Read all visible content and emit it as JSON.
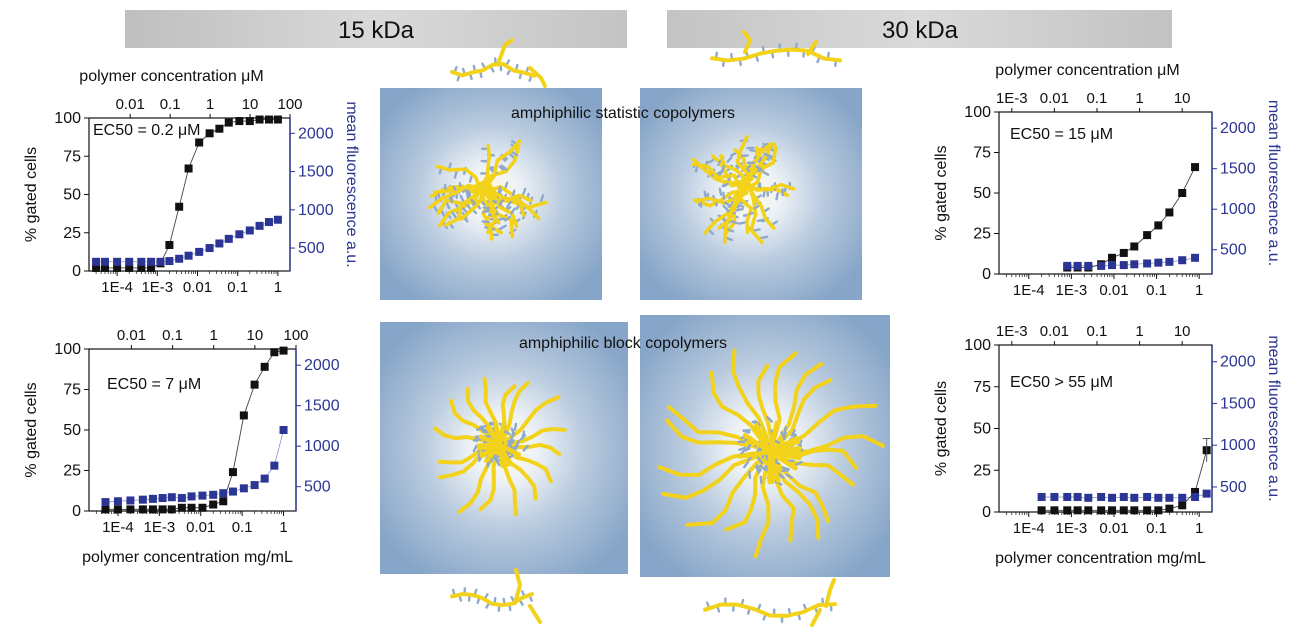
{
  "header": {
    "left_label": "15 kDa",
    "right_label": "30 kDa"
  },
  "labels": {
    "statistic": "amphiphilic statistic copolymers",
    "block": "amphiphilic block copolymers"
  },
  "colors": {
    "black_series": "#111111",
    "blue_series": "#2b3593",
    "micelle_bg": "#7f9fc6",
    "chain": "#f2d21b",
    "side_group": "#8fa8cc"
  },
  "chart_data": [
    {
      "id": "top-left",
      "type": "scatter",
      "top_axis_title": "polymer concentration μM",
      "top_ticks": [
        "0.01",
        "0.1",
        "1",
        "10",
        "100"
      ],
      "bottom_axis_title": "",
      "x_scale": "log",
      "xlim": [
        2e-05,
        2
      ],
      "x_ticks": [
        "1E-4",
        "1E-3",
        "0.01",
        "0.1",
        "1"
      ],
      "ylabel": "% gated cells",
      "ylim": [
        0,
        100
      ],
      "y_ticks": [
        "0",
        "25",
        "50",
        "75",
        "100"
      ],
      "y2label": "mean fluorescence a.u.",
      "y2lim": [
        200,
        2200
      ],
      "y2_ticks": [
        "500",
        "1000",
        "1500",
        "2000"
      ],
      "annotation": "EC50 = 0.2 μM",
      "series": [
        {
          "axis": "left",
          "color": "#111111",
          "x": [
            3e-05,
            5e-05,
            0.0001,
            0.0002,
            0.0004,
            0.0007,
            0.0012,
            0.002,
            0.0035,
            0.006,
            0.011,
            0.02,
            0.035,
            0.06,
            0.11,
            0.2,
            0.35,
            0.6,
            1.0
          ],
          "y": [
            2,
            2,
            2,
            2,
            2,
            2,
            5,
            17,
            42,
            67,
            84,
            90,
            93,
            97,
            98,
            98,
            99,
            99,
            99
          ]
        },
        {
          "axis": "right",
          "color": "#2b3593",
          "x": [
            3e-05,
            5e-05,
            0.0001,
            0.0002,
            0.0004,
            0.0007,
            0.0012,
            0.002,
            0.0035,
            0.006,
            0.011,
            0.02,
            0.035,
            0.06,
            0.11,
            0.2,
            0.35,
            0.6,
            1.0
          ],
          "y": [
            320,
            320,
            320,
            320,
            320,
            320,
            320,
            330,
            360,
            400,
            450,
            500,
            560,
            620,
            680,
            730,
            790,
            840,
            870
          ]
        }
      ]
    },
    {
      "id": "bottom-left",
      "type": "scatter",
      "top_axis_title": "",
      "top_ticks": [
        "0.01",
        "0.1",
        "1",
        "10",
        "100"
      ],
      "bottom_axis_title": "polymer concentration mg/mL",
      "x_scale": "log",
      "xlim": [
        2e-05,
        2
      ],
      "x_ticks": [
        "1E-4",
        "1E-3",
        "0.01",
        "0.1",
        "1"
      ],
      "ylabel": "% gated cells",
      "ylim": [
        0,
        100
      ],
      "y_ticks": [
        "0",
        "25",
        "50",
        "75",
        "100"
      ],
      "y2label": "",
      "y2lim": [
        200,
        2200
      ],
      "y2_ticks": [
        "500",
        "1000",
        "1500",
        "2000"
      ],
      "annotation": "EC50 = 7 μM",
      "series": [
        {
          "axis": "left",
          "color": "#111111",
          "x": [
            5e-05,
            0.0001,
            0.0002,
            0.0004,
            0.0007,
            0.0012,
            0.002,
            0.0035,
            0.006,
            0.011,
            0.02,
            0.035,
            0.06,
            0.11,
            0.2,
            0.35,
            0.6,
            1.0
          ],
          "y": [
            1,
            1,
            1,
            1,
            1,
            1,
            1,
            2,
            2,
            2,
            4,
            6,
            24,
            59,
            78,
            89,
            98,
            99
          ]
        },
        {
          "axis": "right",
          "color": "#2b3593",
          "x": [
            5e-05,
            0.0001,
            0.0002,
            0.0004,
            0.0007,
            0.0012,
            0.002,
            0.0035,
            0.006,
            0.011,
            0.02,
            0.035,
            0.06,
            0.11,
            0.2,
            0.35,
            0.6,
            1.0
          ],
          "y": [
            310,
            320,
            330,
            340,
            350,
            360,
            370,
            360,
            380,
            390,
            400,
            420,
            440,
            480,
            520,
            600,
            760,
            1200
          ]
        }
      ]
    },
    {
      "id": "top-right",
      "type": "scatter",
      "top_axis_title": "polymer concentration μM",
      "top_ticks": [
        "1E-3",
        "0.01",
        "0.1",
        "1",
        "10"
      ],
      "bottom_axis_title": "",
      "x_scale": "log",
      "xlim": [
        2e-05,
        2
      ],
      "x_ticks": [
        "1E-4",
        "1E-3",
        "0.01",
        "0.1",
        "1"
      ],
      "ylabel": "% gated cells",
      "ylim": [
        0,
        100
      ],
      "y_ticks": [
        "0",
        "25",
        "50",
        "75",
        "100"
      ],
      "y2label": "mean fluorescence a.u.",
      "y2lim": [
        200,
        2200
      ],
      "y2_ticks": [
        "500",
        "1000",
        "1500",
        "2000"
      ],
      "annotation": "EC50 = 15 μM",
      "series": [
        {
          "axis": "left",
          "color": "#111111",
          "x": [
            0.0008,
            0.0014,
            0.0025,
            0.005,
            0.009,
            0.017,
            0.03,
            0.06,
            0.11,
            0.2,
            0.4,
            0.8
          ],
          "y": [
            4,
            4,
            4,
            6,
            10,
            13,
            17,
            24,
            30,
            38,
            50,
            66
          ]
        },
        {
          "axis": "right",
          "color": "#2b3593",
          "x": [
            0.0008,
            0.0014,
            0.0025,
            0.005,
            0.009,
            0.017,
            0.03,
            0.06,
            0.11,
            0.2,
            0.4,
            0.8
          ],
          "y": [
            300,
            300,
            300,
            300,
            310,
            310,
            320,
            330,
            340,
            350,
            370,
            400
          ]
        }
      ]
    },
    {
      "id": "bottom-right",
      "type": "scatter",
      "top_axis_title": "",
      "top_ticks": [
        "1E-3",
        "0.01",
        "0.1",
        "1",
        "10"
      ],
      "bottom_axis_title": "polymer concentration mg/mL",
      "x_scale": "log",
      "xlim": [
        2e-05,
        2
      ],
      "x_ticks": [
        "1E-4",
        "1E-3",
        "0.01",
        "0.1",
        "1"
      ],
      "ylabel": "% gated cells",
      "ylim": [
        0,
        100
      ],
      "y_ticks": [
        "0",
        "25",
        "50",
        "75",
        "100"
      ],
      "y2label": "mean fluorescence a.u.",
      "y2lim": [
        200,
        2200
      ],
      "y2_ticks": [
        "500",
        "1000",
        "1500",
        "2000"
      ],
      "annotation": "EC50 > 55 μM",
      "series": [
        {
          "axis": "left",
          "color": "#111111",
          "x": [
            0.0002,
            0.0004,
            0.0008,
            0.0014,
            0.0025,
            0.005,
            0.009,
            0.017,
            0.03,
            0.06,
            0.11,
            0.2,
            0.4,
            0.8,
            1.5
          ],
          "y": [
            1,
            1,
            1,
            1,
            1,
            1,
            1,
            1,
            1,
            1,
            1,
            2,
            4,
            12,
            37
          ]
        },
        {
          "axis": "right",
          "color": "#2b3593",
          "x": [
            0.0002,
            0.0004,
            0.0008,
            0.0014,
            0.0025,
            0.005,
            0.009,
            0.017,
            0.03,
            0.06,
            0.11,
            0.2,
            0.4,
            0.8,
            1.5
          ],
          "y": [
            380,
            380,
            380,
            380,
            370,
            380,
            370,
            380,
            370,
            380,
            370,
            370,
            370,
            380,
            420
          ]
        }
      ]
    }
  ]
}
